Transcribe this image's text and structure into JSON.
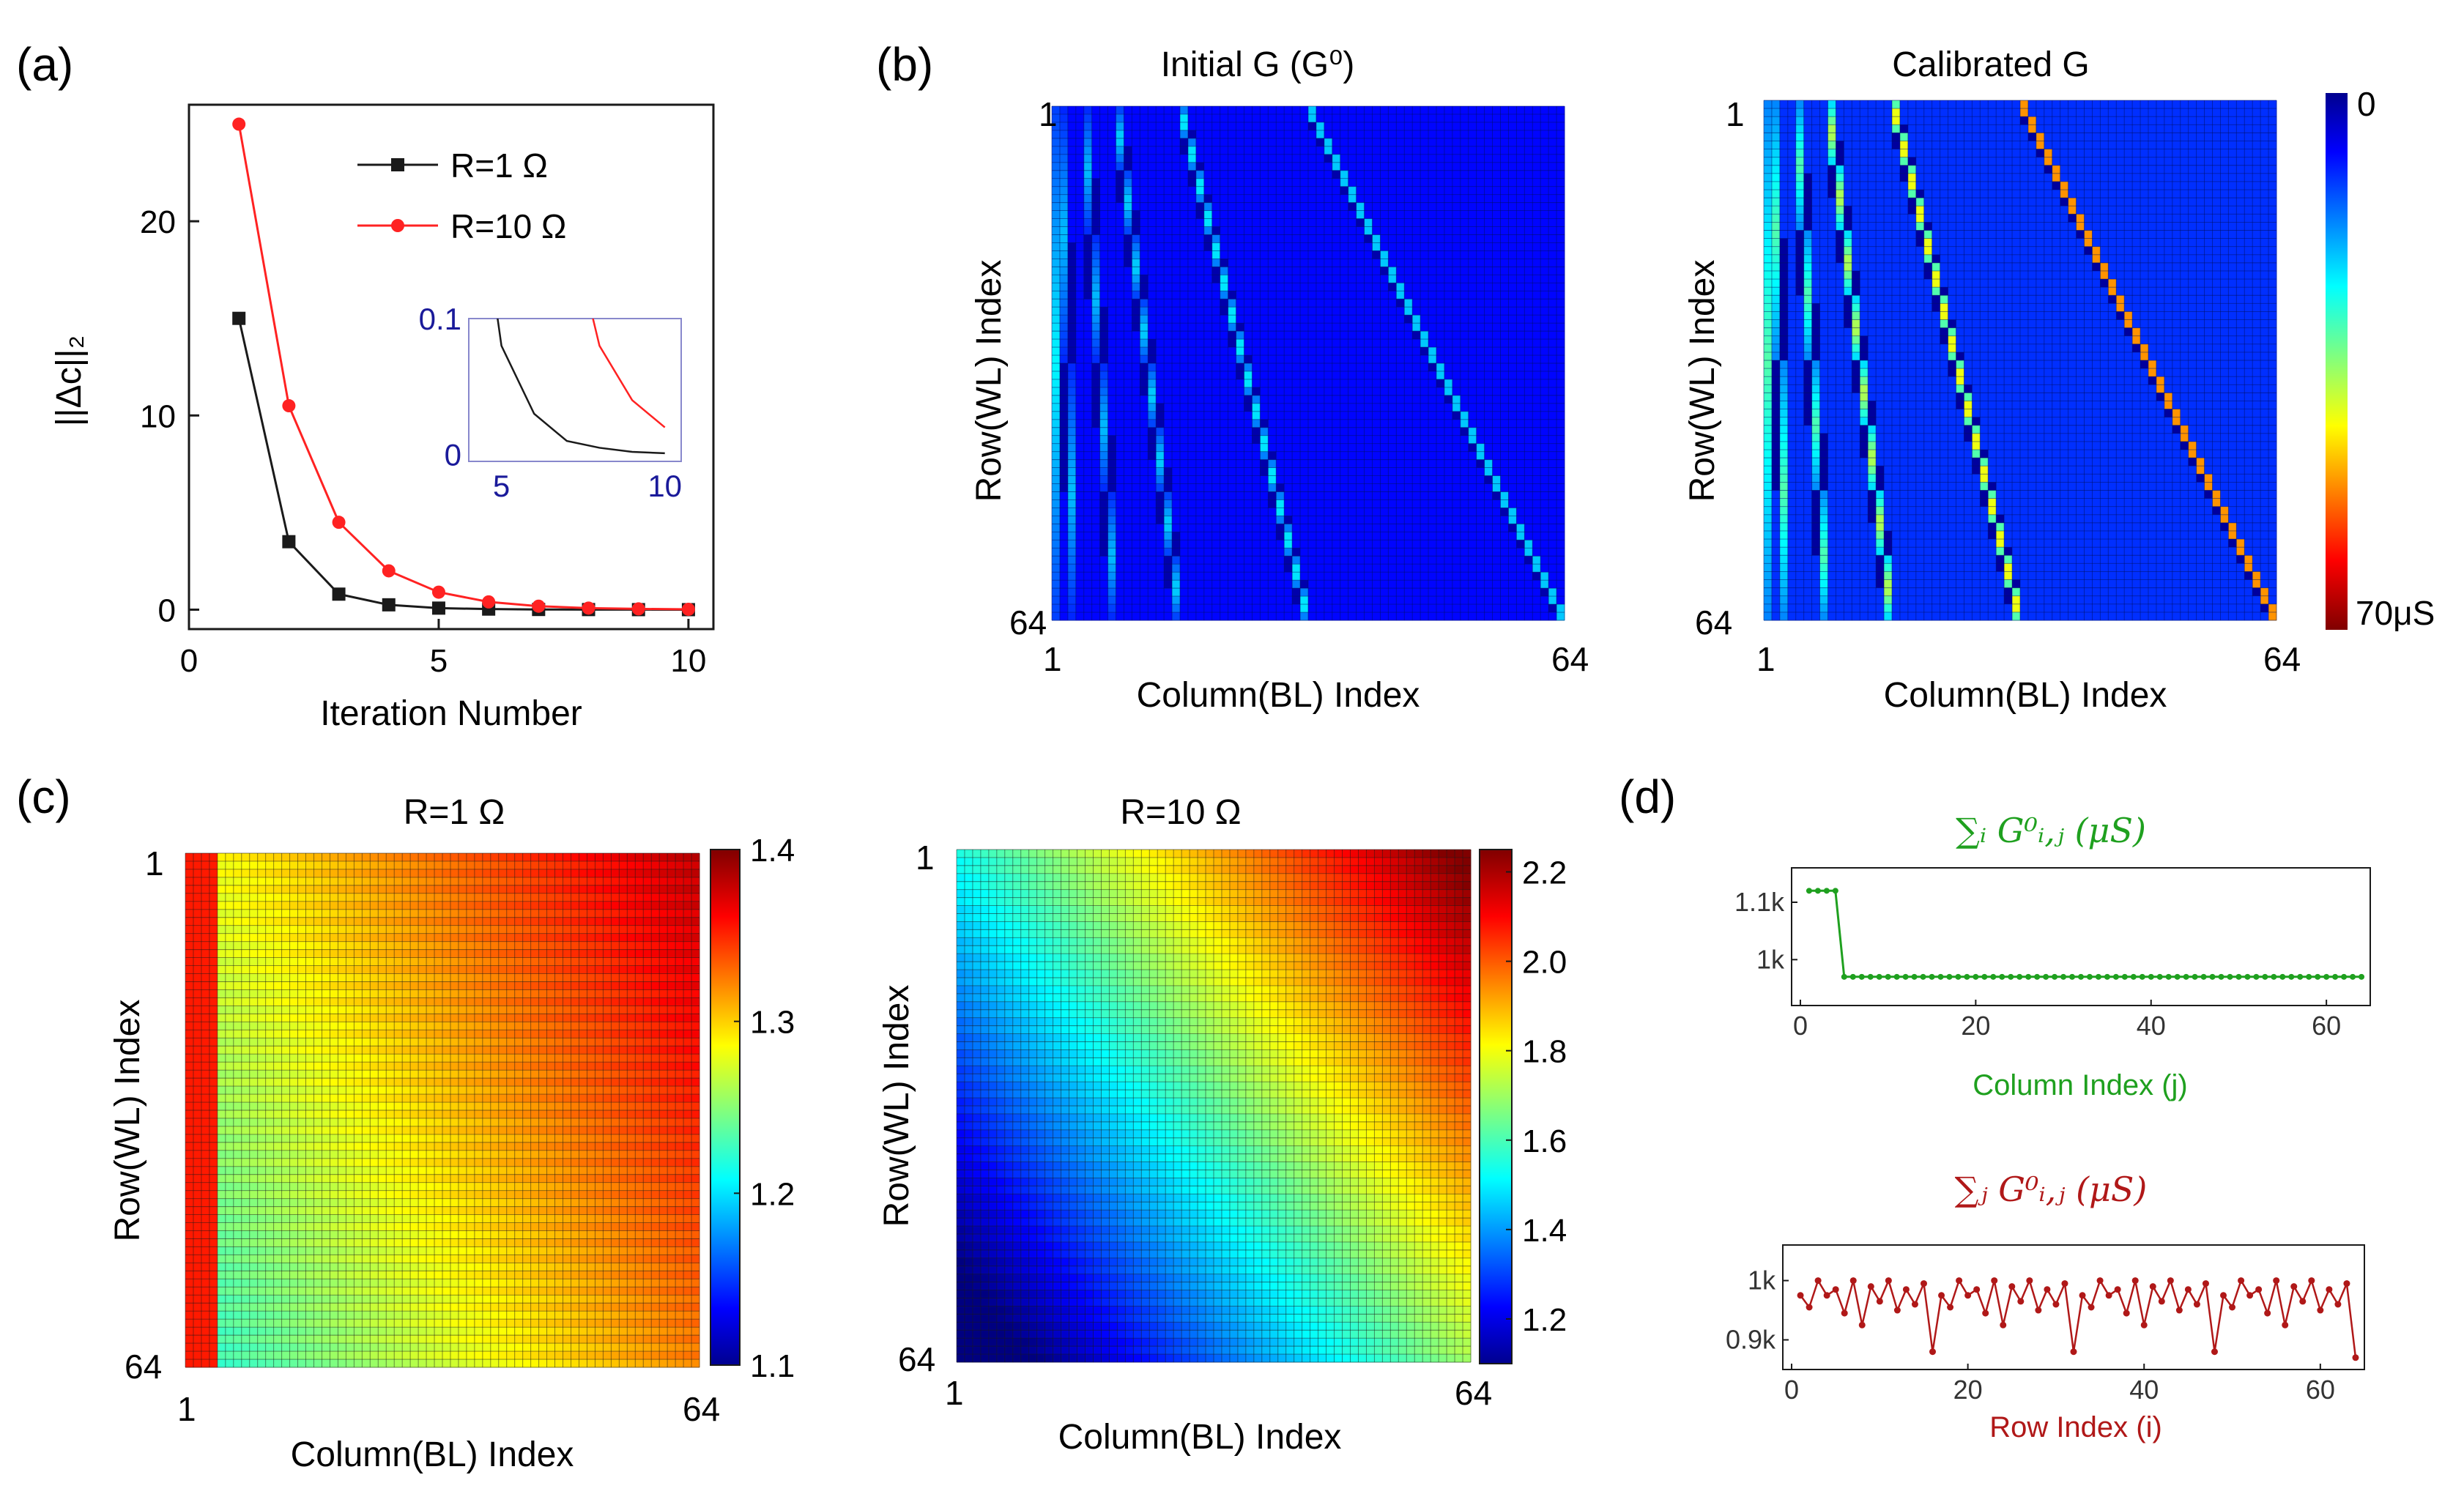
{
  "panels": {
    "a": {
      "letter": "(a)"
    },
    "b": {
      "letter": "(b)"
    },
    "c": {
      "letter": "(c)"
    },
    "d": {
      "letter": "(d)"
    }
  },
  "colors": {
    "black": "#1a1a1a",
    "red": "#ff2222",
    "inset_axis": "#1a1a9a",
    "green": "#1fa01f",
    "darkred": "#b01818",
    "gridline": "#222222",
    "colorbar_text": "#1a1a1a"
  },
  "chart_data": [
    {
      "id": "a",
      "type": "line",
      "title": "",
      "xlabel": "Iteration Number",
      "ylabel": "||Δc||₂",
      "xlim": [
        0,
        10.5
      ],
      "ylim": [
        -1,
        26
      ],
      "xticks": [
        0,
        5,
        10
      ],
      "yticks": [
        0,
        10,
        20
      ],
      "x": [
        1,
        2,
        3,
        4,
        5,
        6,
        7,
        8,
        9,
        10
      ],
      "series": [
        {
          "name": "R=1 Ω",
          "color": "#1a1a1a",
          "marker": "square",
          "values": [
            15,
            3.5,
            0.8,
            0.25,
            0.08,
            0.03,
            0.01,
            0.005,
            0.002,
            0.001
          ]
        },
        {
          "name": "R=10 Ω",
          "color": "#ff2222",
          "marker": "circle",
          "values": [
            25,
            10.5,
            4.5,
            2.0,
            0.9,
            0.4,
            0.18,
            0.08,
            0.04,
            0.02
          ]
        }
      ],
      "inset": {
        "xlim": [
          4,
          10.5
        ],
        "ylim": [
          -0.005,
          0.1
        ],
        "xticks": [
          5,
          10
        ],
        "yticks": [
          0,
          0.1
        ],
        "ytick_labels": [
          "0",
          "0.1"
        ]
      }
    },
    {
      "id": "b1",
      "type": "heatmap",
      "title": "Initial G (G⁰)",
      "xlabel": "Column(BL) Index",
      "ylabel": "Row(WL) Index",
      "xtick_labels": [
        "1",
        "64"
      ],
      "ytick_labels": [
        "1",
        "64"
      ],
      "size": [
        64,
        64
      ],
      "value_range": [
        0,
        70
      ],
      "description_values": {
        "background": 2,
        "diagonal_bands": [
          2,
          4,
          8,
          16,
          32
        ],
        "band_peak": 30
      }
    },
    {
      "id": "b2",
      "type": "heatmap",
      "title": "Calibrated G",
      "xlabel": "Column(BL) Index",
      "ylabel": "Row(WL) Index",
      "xtick_labels": [
        "1",
        "64"
      ],
      "ytick_labels": [
        "1",
        "64"
      ],
      "size": [
        64,
        64
      ],
      "value_range": [
        0,
        70
      ],
      "colorbar_labels": [
        "0",
        "70μS"
      ]
    },
    {
      "id": "c1",
      "type": "heatmap",
      "title": "R=1 Ω",
      "xlabel": "Column(BL) Index",
      "ylabel": "Row(WL) Index",
      "xtick_labels": [
        "1",
        "64"
      ],
      "ytick_labels": [
        "1",
        "64"
      ],
      "size": [
        64,
        64
      ],
      "value_range": [
        1.1,
        1.4
      ],
      "colorbar_ticks": [
        1.4,
        1.3,
        1.2,
        1.1
      ],
      "colorbar_tick_labels": [
        "1.4",
        "1.3",
        "1.2",
        "1.1"
      ]
    },
    {
      "id": "c2",
      "type": "heatmap",
      "title": "R=10 Ω",
      "xlabel": "Column(BL) Index",
      "ylabel": "Row(WL) Index",
      "xtick_labels": [
        "1",
        "64"
      ],
      "ytick_labels": [
        "1",
        "64"
      ],
      "size": [
        64,
        64
      ],
      "value_range": [
        1.1,
        2.25
      ],
      "colorbar_ticks": [
        2.2,
        2.0,
        1.8,
        1.6,
        1.4,
        1.2
      ],
      "colorbar_tick_labels": [
        "2.2",
        "2.0",
        "1.8",
        "1.6",
        "1.4",
        "1.2"
      ]
    },
    {
      "id": "d1",
      "type": "scatter",
      "title": "∑ᵢ G⁰ᵢ,ⱼ (μS)",
      "xlabel": "Column Index (j)",
      "ylabel": "",
      "color": "#1fa01f",
      "xlim": [
        -1,
        65
      ],
      "ylim": [
        920,
        1160
      ],
      "xticks": [
        0,
        20,
        40,
        60
      ],
      "yticks": [
        1000,
        1100
      ],
      "ytick_labels": [
        "1k",
        "1.1k"
      ],
      "x_first": 1,
      "x_last": 64,
      "values_by_range": [
        {
          "from": 1,
          "to": 4,
          "value": 1120
        },
        {
          "from": 5,
          "to": 64,
          "value": 970
        }
      ]
    },
    {
      "id": "d2",
      "type": "line",
      "title": "∑ⱼ G⁰ᵢ,ⱼ (μS)",
      "xlabel": "Row Index (i)",
      "ylabel": "",
      "color": "#b01818",
      "xlim": [
        -1,
        65
      ],
      "ylim": [
        850,
        1060
      ],
      "xticks": [
        0,
        20,
        40,
        60
      ],
      "yticks": [
        900,
        1000
      ],
      "ytick_labels": [
        "0.9k",
        "1k"
      ],
      "period_values": [
        975,
        955,
        1000,
        975,
        985,
        945,
        1000,
        925,
        990,
        965,
        1000,
        950,
        985,
        960,
        995,
        880
      ],
      "final_value": 870
    }
  ]
}
